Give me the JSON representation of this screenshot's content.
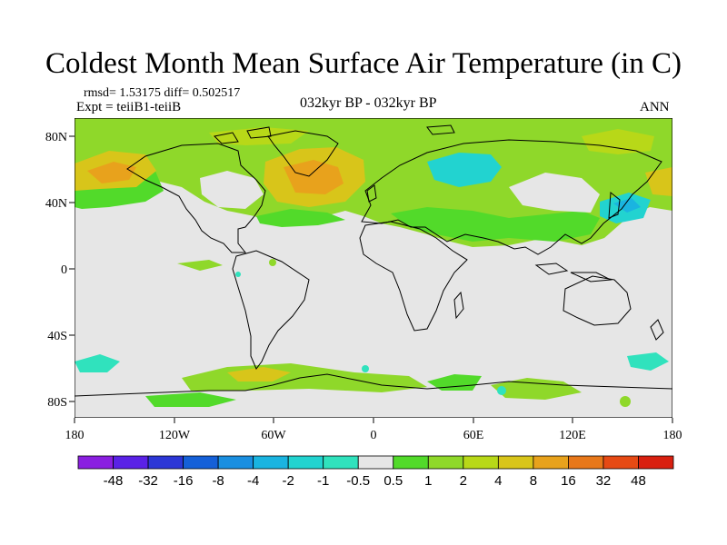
{
  "title": "Coldest Month Mean Surface Air Temperature (in C)",
  "stats_line": "rmsd= 1.53175 diff= 0.502517",
  "experiment_line": "Expt = teiiB1-teiiB",
  "subtitle": "032kyr BP - 032kyr BP",
  "season": "ANN",
  "lat_ticks": [
    "80N",
    "40N",
    "0",
    "40S",
    "80S"
  ],
  "lon_ticks": [
    "180",
    "120W",
    "60W",
    "0",
    "60E",
    "120E",
    "180"
  ],
  "colorbar": {
    "labels": [
      "-48",
      "-32",
      "-16",
      "-8",
      "-4",
      "-2",
      "-1",
      "-0.5",
      "0.5",
      "1",
      "2",
      "4",
      "8",
      "16",
      "32",
      "48"
    ],
    "colors": [
      "#8a1fe0",
      "#5a22e6",
      "#2c37d6",
      "#1560d8",
      "#1a8fe0",
      "#1ab4e0",
      "#22d3d0",
      "#30e2bd",
      "#e6e6e6",
      "#52da2a",
      "#8fd82a",
      "#b8d818",
      "#d8c51a",
      "#e8a21c",
      "#e8781a",
      "#e64a14",
      "#d82010"
    ]
  }
}
